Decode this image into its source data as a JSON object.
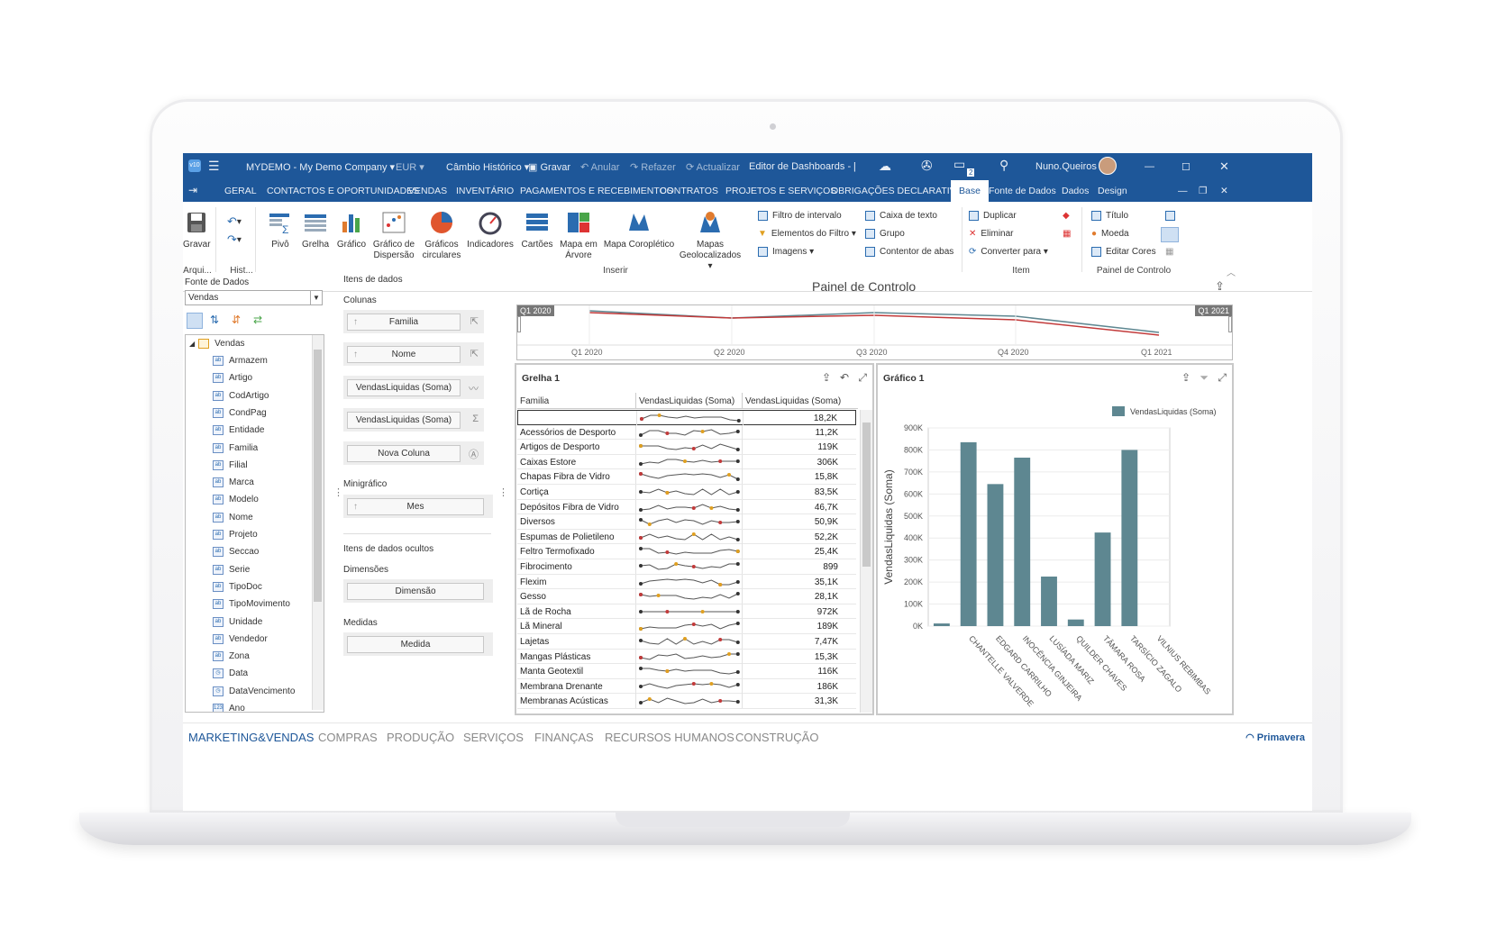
{
  "titlebar": {
    "company": "MYDEMO - My Demo Company",
    "currency": "EUR",
    "rate": "Câmbio Histórico",
    "save": "Gravar",
    "undo": "Anular",
    "redo": "Refazer",
    "refresh": "Actualizar",
    "window_title": "Editor de Dashboards - [EXE",
    "user": "Nuno.Queiros",
    "notifications": "2"
  },
  "tabs": [
    "GERAL",
    "CONTACTOS E OPORTUNIDADES",
    "VENDAS",
    "INVENTÁRIO",
    "PAGAMENTOS E RECEBIMENTOS",
    "CONTRATOS",
    "PROJETOS E SERVIÇOS",
    "OBRIGAÇÕES DECLARATIVAS",
    "Base",
    "Fonte de Dados",
    "Dados",
    "Design"
  ],
  "ribbon": {
    "buttons": [
      "Gravar",
      "Pivô",
      "Grelha",
      "Gráfico",
      "Gráfico de Dispersão",
      "Gráficos circulares",
      "Indicadores",
      "Cartões",
      "Mapa em Árvore",
      "Mapa Coroplético",
      "Mapas Geolocalizados"
    ],
    "small": [
      "Filtro de intervalo",
      "Elementos do Filtro",
      "Imagens",
      "Caixa de texto",
      "Grupo",
      "Contentor de abas",
      "Duplicar",
      "Eliminar",
      "Converter para",
      "Título",
      "Moeda",
      "Editar Cores"
    ],
    "groups": [
      "Arqui...",
      "Hist...",
      "Inserir",
      "Item",
      "Painel de Controlo"
    ]
  },
  "left": {
    "label": "Fonte de Dados",
    "source": "Vendas",
    "root": "Vendas",
    "fields": [
      "Armazem",
      "Artigo",
      "CodArtigo",
      "CondPag",
      "Entidade",
      "Familia",
      "Filial",
      "Marca",
      "Modelo",
      "Nome",
      "Projeto",
      "Seccao",
      "Serie",
      "TipoDoc",
      "TipoMovimento",
      "Unidade",
      "Vendedor",
      "Zona",
      "Data",
      "DataVencimento",
      "Ano"
    ]
  },
  "mid": {
    "title": "Itens de dados",
    "columns_label": "Colunas",
    "columns": [
      "Familia",
      "Nome",
      "VendasLiquidas (Soma)",
      "VendasLiquidas (Soma)",
      "Nova Coluna"
    ],
    "sparkline_label": "Minigráfico",
    "sparkline": "Mes",
    "hidden_label": "Itens de dados ocultos",
    "dims_label": "Dimensões",
    "dim": "Dimensão",
    "measures_label": "Medidas",
    "measure": "Medida"
  },
  "dashboard": {
    "title": "Painel de Controlo",
    "range": {
      "start_tag": "Q1 2020",
      "end_tag": "Q1 2021",
      "ticks": [
        "Q1 2020",
        "Q2 2020",
        "Q3 2020",
        "Q4 2020",
        "Q1 2021"
      ]
    },
    "grid": {
      "title": "Grelha 1",
      "headers": [
        "Familia",
        "VendasLiquidas (Soma)",
        "VendasLiquidas (Soma)"
      ],
      "rows": [
        {
          "fam": "",
          "val": "18,2K"
        },
        {
          "fam": "Acessórios de Desporto",
          "val": "11,2K"
        },
        {
          "fam": "Artigos de Desporto",
          "val": "119K"
        },
        {
          "fam": "Caixas Estore",
          "val": "306K"
        },
        {
          "fam": "Chapas Fibra de Vidro",
          "val": "15,8K"
        },
        {
          "fam": "Cortiça",
          "val": "83,5K"
        },
        {
          "fam": "Depósitos Fibra de Vidro",
          "val": "46,7K"
        },
        {
          "fam": "Diversos",
          "val": "50,9K"
        },
        {
          "fam": "Espumas de Polietileno",
          "val": "52,2K"
        },
        {
          "fam": "Feltro Termofixado",
          "val": "25,4K"
        },
        {
          "fam": "Fibrocimento",
          "val": "899"
        },
        {
          "fam": "Flexim",
          "val": "35,1K"
        },
        {
          "fam": "Gesso",
          "val": "28,1K"
        },
        {
          "fam": "Lã de Rocha",
          "val": "972K"
        },
        {
          "fam": "Lã Mineral",
          "val": "189K"
        },
        {
          "fam": "Lajetas",
          "val": "7,47K"
        },
        {
          "fam": "Mangas Plásticas",
          "val": "15,3K"
        },
        {
          "fam": "Manta Geotextil",
          "val": "116K"
        },
        {
          "fam": "Membrana Drenante",
          "val": "186K"
        },
        {
          "fam": "Membranas Acústicas",
          "val": "31,3K"
        }
      ]
    },
    "chart_title": "Gráfico 1"
  },
  "chart_data": {
    "type": "bar",
    "title": "",
    "ylabel": "VendasLiquidas (Soma)",
    "xlabel": "",
    "legend": "top-right",
    "categories": [
      "",
      "CHANTELLE VALVERDE",
      "EDGARD CARRILHO",
      "INOCÊNCIA GINJEIRA",
      "LUSÍADA MARIZ",
      "QUILDER CHAVES",
      "TÂMARA ROSA",
      "TARSÍCIO ZAGALO",
      "VILNIUS REBIMBAS"
    ],
    "series": [
      {
        "name": "VendasLiquidas (Soma)",
        "values": [
          12000,
          835000,
          645000,
          765000,
          225000,
          30000,
          425000,
          800000,
          0
        ]
      }
    ],
    "yticks": [
      "0K",
      "100K",
      "200K",
      "300K",
      "400K",
      "500K",
      "600K",
      "700K",
      "800K",
      "900K"
    ],
    "ylim": [
      0,
      900000
    ],
    "grid": true,
    "color": "#5e8791"
  },
  "bottom": {
    "tabs": [
      "MARKETING&VENDAS",
      "COMPRAS",
      "PRODUÇÃO",
      "SERVIÇOS",
      "FINANÇAS",
      "RECURSOS HUMANOS",
      "CONSTRUÇÃO"
    ],
    "brand": "Primavera"
  }
}
